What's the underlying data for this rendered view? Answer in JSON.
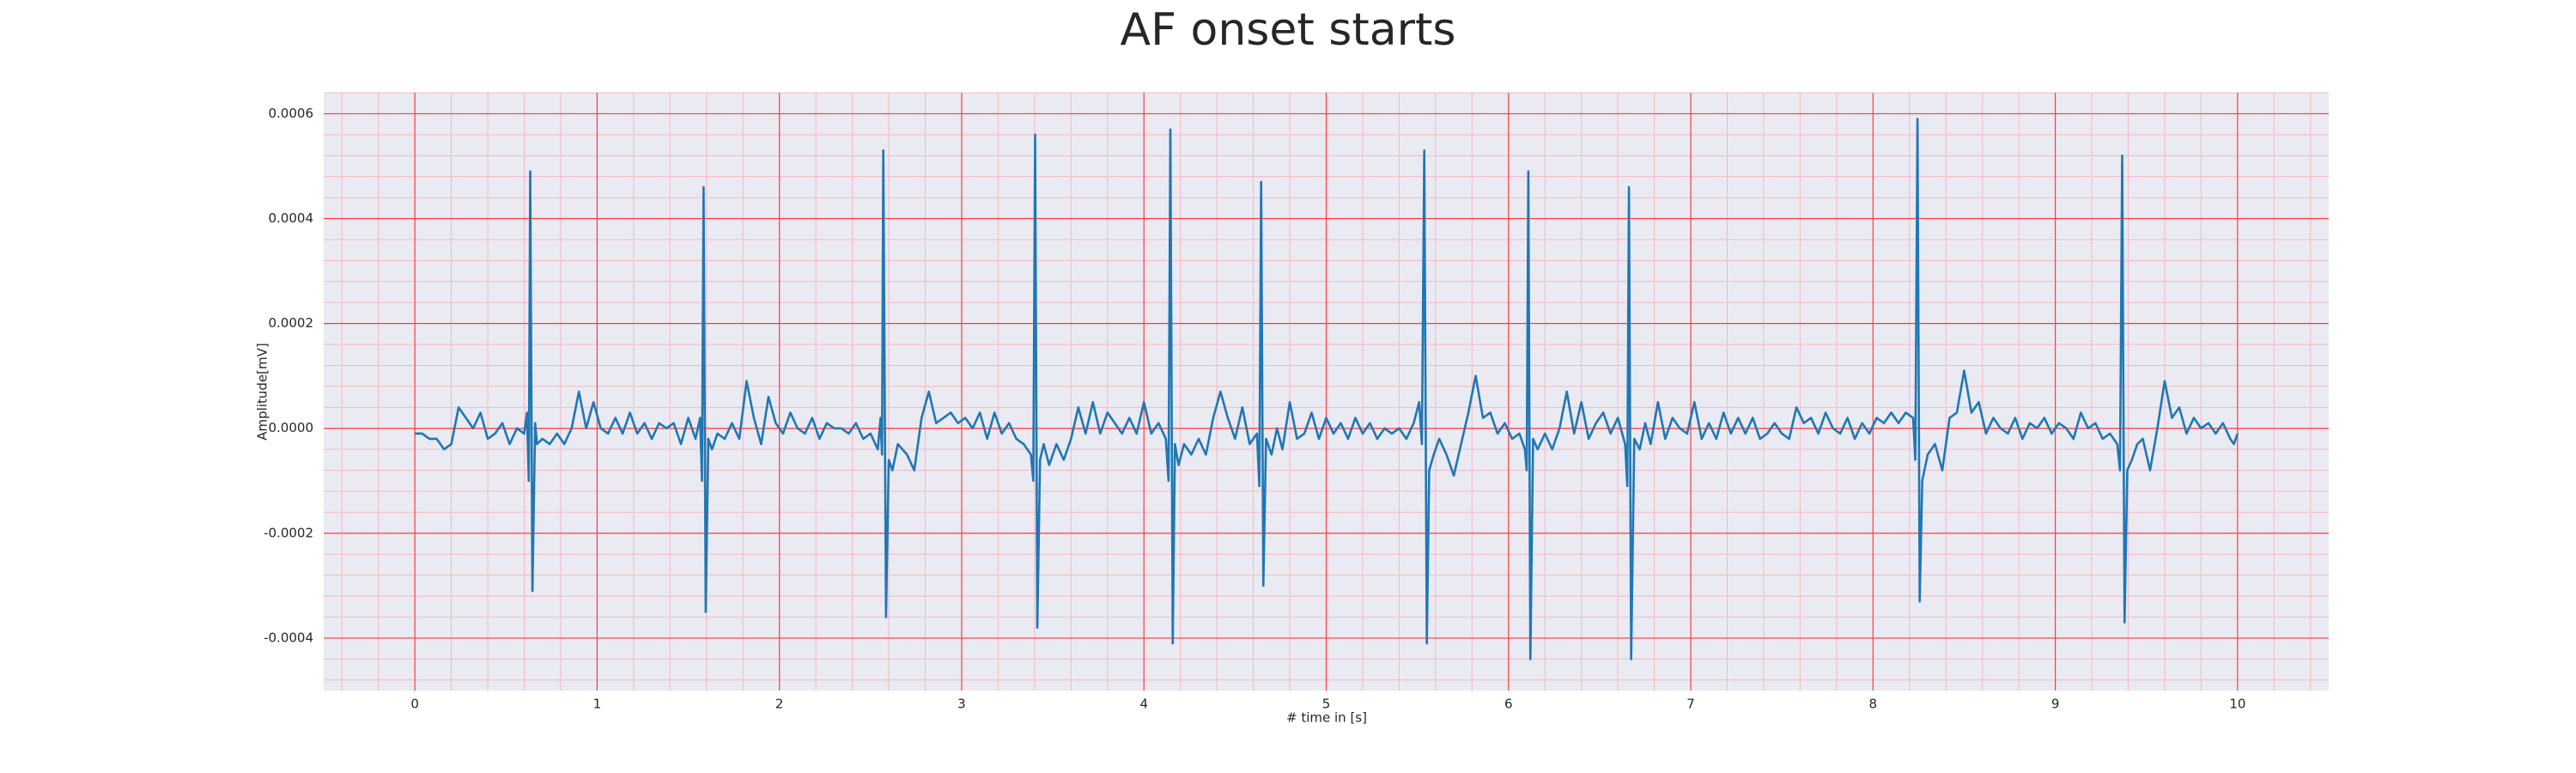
{
  "chart_data": {
    "type": "line",
    "title": "AF onset starts",
    "xlabel": "# time in [s]",
    "ylabel": "Amplitude[mV]",
    "color": "#1f77b4",
    "background": "#eaeaf2",
    "grid": true,
    "grid_color": "#ff3b3b",
    "minor_grid_color": "#f7b8c4",
    "xlim": [
      -0.5,
      10.5
    ],
    "ylim": [
      -0.0005,
      0.00064
    ],
    "xticks": [
      0,
      1,
      2,
      3,
      4,
      5,
      6,
      7,
      8,
      9,
      10
    ],
    "yticks": [
      -0.0004,
      -0.0002,
      {
        "value": 0,
        "label": "0.0000"
      },
      0.0002,
      0.0004,
      0.0006
    ],
    "xminorticks": [
      -0.4,
      -0.2,
      0.2,
      0.4,
      0.6,
      0.8,
      1.2,
      1.4,
      1.6,
      1.8,
      2.2,
      2.4,
      2.6,
      2.8,
      3.2,
      3.4,
      3.6,
      3.8,
      4.2,
      4.4,
      4.6,
      4.8,
      5.2,
      5.4,
      5.6,
      5.8,
      6.2,
      6.4,
      6.6,
      6.8,
      7.2,
      7.4,
      7.6,
      7.8,
      8.2,
      8.4,
      8.6,
      8.8,
      9.2,
      9.4,
      9.6,
      9.8,
      10.2,
      10.4
    ],
    "yminorticks": [
      -0.00048,
      -0.00044,
      -0.00036,
      -0.00032,
      -0.00028,
      -0.00024,
      -0.00016,
      -0.00012,
      -8e-05,
      -4e-05,
      4e-05,
      8e-05,
      0.00012,
      0.00016,
      0.00024,
      0.00028,
      0.00032,
      0.00036,
      0.00044,
      0.00048,
      0.00052,
      0.00056,
      0.00064
    ],
    "x": [
      0,
      0.04,
      0.08,
      0.12,
      0.16,
      0.2,
      0.24,
      0.28,
      0.32,
      0.36,
      0.4,
      0.44,
      0.48,
      0.52,
      0.56,
      0.6,
      0.615,
      0.625,
      0.633,
      0.645,
      0.66,
      0.67,
      0.7,
      0.74,
      0.78,
      0.82,
      0.86,
      0.9,
      0.94,
      0.98,
      1.02,
      1.06,
      1.1,
      1.14,
      1.18,
      1.22,
      1.26,
      1.3,
      1.34,
      1.38,
      1.42,
      1.46,
      1.5,
      1.54,
      1.565,
      1.575,
      1.584,
      1.596,
      1.61,
      1.63,
      1.66,
      1.7,
      1.74,
      1.78,
      1.82,
      1.86,
      1.9,
      1.94,
      1.98,
      2.02,
      2.06,
      2.1,
      2.14,
      2.18,
      2.22,
      2.26,
      2.3,
      2.34,
      2.38,
      2.42,
      2.46,
      2.5,
      2.54,
      2.555,
      2.563,
      2.57,
      2.585,
      2.6,
      2.62,
      2.65,
      2.7,
      2.74,
      2.78,
      2.82,
      2.86,
      2.9,
      2.94,
      2.98,
      3.02,
      3.06,
      3.1,
      3.14,
      3.18,
      3.22,
      3.26,
      3.3,
      3.34,
      3.38,
      3.393,
      3.403,
      3.415,
      3.43,
      3.45,
      3.48,
      3.52,
      3.56,
      3.6,
      3.64,
      3.68,
      3.72,
      3.76,
      3.8,
      3.84,
      3.88,
      3.92,
      3.96,
      4.0,
      4.04,
      4.08,
      4.12,
      4.135,
      4.145,
      4.158,
      4.17,
      4.19,
      4.22,
      4.26,
      4.3,
      4.34,
      4.38,
      4.42,
      4.46,
      4.5,
      4.54,
      4.58,
      4.62,
      4.633,
      4.643,
      4.655,
      4.67,
      4.7,
      4.73,
      4.76,
      4.8,
      4.84,
      4.88,
      4.92,
      4.96,
      5.0,
      5.04,
      5.08,
      5.12,
      5.16,
      5.2,
      5.24,
      5.28,
      5.32,
      5.36,
      5.4,
      5.44,
      5.48,
      5.51,
      5.525,
      5.538,
      5.552,
      5.565,
      5.59,
      5.62,
      5.66,
      5.7,
      5.74,
      5.78,
      5.82,
      5.86,
      5.9,
      5.94,
      5.98,
      6.02,
      6.06,
      6.09,
      6.1,
      6.109,
      6.12,
      6.135,
      6.16,
      6.2,
      6.24,
      6.28,
      6.32,
      6.36,
      6.4,
      6.44,
      6.48,
      6.52,
      6.56,
      6.6,
      6.64,
      6.652,
      6.661,
      6.673,
      6.69,
      6.72,
      6.75,
      6.78,
      6.82,
      6.86,
      6.9,
      6.94,
      6.98,
      7.02,
      7.06,
      7.1,
      7.14,
      7.18,
      7.22,
      7.26,
      7.3,
      7.34,
      7.38,
      7.42,
      7.46,
      7.5,
      7.54,
      7.58,
      7.62,
      7.66,
      7.7,
      7.74,
      7.78,
      7.82,
      7.86,
      7.9,
      7.94,
      7.98,
      8.02,
      8.06,
      8.1,
      8.14,
      8.18,
      8.22,
      8.232,
      8.244,
      8.256,
      8.27,
      8.3,
      8.34,
      8.38,
      8.42,
      8.46,
      8.5,
      8.54,
      8.58,
      8.62,
      8.66,
      8.7,
      8.74,
      8.78,
      8.82,
      8.86,
      8.9,
      8.94,
      8.98,
      9.02,
      9.06,
      9.1,
      9.14,
      9.18,
      9.22,
      9.26,
      9.3,
      9.34,
      9.355,
      9.367,
      9.38,
      9.395,
      9.42,
      9.45,
      9.48,
      9.52,
      9.56,
      9.6,
      9.64,
      9.68,
      9.72,
      9.76,
      9.8,
      9.84,
      9.88,
      9.92,
      9.96,
      9.98,
      10.0
    ],
    "values": [
      -1e-05,
      -1e-05,
      -2e-05,
      -2e-05,
      -4e-05,
      -3e-05,
      4e-05,
      2e-05,
      0,
      3e-05,
      -2e-05,
      -1e-05,
      1e-05,
      -3e-05,
      0,
      -1e-05,
      3e-05,
      -0.0001,
      0.00049,
      -0.00031,
      1e-05,
      -3e-05,
      -2e-05,
      -3e-05,
      -1e-05,
      -3e-05,
      0,
      7e-05,
      0,
      5e-05,
      0,
      -1e-05,
      2e-05,
      -1e-05,
      3e-05,
      -1e-05,
      1e-05,
      -2e-05,
      1e-05,
      0,
      1e-05,
      -3e-05,
      2e-05,
      -2e-05,
      2e-05,
      -0.0001,
      0.00046,
      -0.00035,
      -2e-05,
      -4e-05,
      -1e-05,
      -2e-05,
      1e-05,
      -2e-05,
      9e-05,
      2e-05,
      -3e-05,
      6e-05,
      1e-05,
      -1e-05,
      3e-05,
      0,
      -1e-05,
      2e-05,
      -2e-05,
      1e-05,
      0,
      0,
      -1e-05,
      1e-05,
      -2e-05,
      -1e-05,
      -4e-05,
      2e-05,
      -5e-05,
      0.00053,
      -0.00036,
      -6e-05,
      -8e-05,
      -3e-05,
      -5e-05,
      -8e-05,
      2e-05,
      7e-05,
      1e-05,
      2e-05,
      3e-05,
      1e-05,
      2e-05,
      0,
      3e-05,
      -2e-05,
      3e-05,
      -1e-05,
      1e-05,
      -2e-05,
      -3e-05,
      -5e-05,
      -0.0001,
      0.00056,
      -0.00038,
      -6e-05,
      -3e-05,
      -7e-05,
      -3e-05,
      -6e-05,
      -2e-05,
      4e-05,
      -1e-05,
      5e-05,
      -1e-05,
      3e-05,
      1e-05,
      -1e-05,
      2e-05,
      -1e-05,
      5e-05,
      -1e-05,
      1e-05,
      -2e-05,
      -0.0001,
      0.00057,
      -0.00041,
      -3e-05,
      -7e-05,
      -3e-05,
      -5e-05,
      -2e-05,
      -5e-05,
      2e-05,
      7e-05,
      2e-05,
      -2e-05,
      4e-05,
      -3e-05,
      -1e-05,
      -0.00011,
      0.00047,
      -0.0003,
      -2e-05,
      -5e-05,
      0,
      -4e-05,
      5e-05,
      -2e-05,
      -1e-05,
      3e-05,
      -2e-05,
      2e-05,
      -1e-05,
      1e-05,
      -2e-05,
      2e-05,
      -1e-05,
      1e-05,
      -2e-05,
      0,
      -1e-05,
      0,
      -2e-05,
      1e-05,
      5e-05,
      -3e-05,
      0.00053,
      -0.00041,
      -8e-05,
      -5e-05,
      -2e-05,
      -5e-05,
      -9e-05,
      -3e-05,
      3e-05,
      0.0001,
      2e-05,
      3e-05,
      -1e-05,
      1e-05,
      -2e-05,
      -1e-05,
      -4e-05,
      -8e-05,
      0.00049,
      -0.00044,
      -2e-05,
      -4e-05,
      -1e-05,
      -4e-05,
      0,
      7e-05,
      -1e-05,
      5e-05,
      -2e-05,
      1e-05,
      3e-05,
      -1e-05,
      2e-05,
      -3e-05,
      -0.00011,
      0.00046,
      -0.00044,
      -2e-05,
      -4e-05,
      1e-05,
      -3e-05,
      5e-05,
      -2e-05,
      2e-05,
      0,
      -1e-05,
      5e-05,
      -2e-05,
      1e-05,
      -2e-05,
      3e-05,
      -1e-05,
      2e-05,
      -1e-05,
      2e-05,
      -2e-05,
      -1e-05,
      1e-05,
      -1e-05,
      -2e-05,
      4e-05,
      1e-05,
      2e-05,
      -1e-05,
      3e-05,
      0,
      -1e-05,
      2e-05,
      -2e-05,
      1e-05,
      -1e-05,
      2e-05,
      1e-05,
      3e-05,
      1e-05,
      3e-05,
      2e-05,
      -6e-05,
      0.00059,
      -0.00033,
      -0.0001,
      -5e-05,
      -3e-05,
      -8e-05,
      2e-05,
      3e-05,
      0.00011,
      3e-05,
      5e-05,
      -1e-05,
      2e-05,
      0,
      -1e-05,
      2e-05,
      -2e-05,
      1e-05,
      0,
      2e-05,
      -1e-05,
      1e-05,
      0,
      -2e-05,
      3e-05,
      0,
      1e-05,
      -2e-05,
      -1e-05,
      -3e-05,
      -8e-05,
      0.00052,
      -0.00037,
      -8e-05,
      -6e-05,
      -3e-05,
      -2e-05,
      -8e-05,
      0,
      9e-05,
      2e-05,
      4e-05,
      -1e-05,
      2e-05,
      0,
      1e-05,
      -1e-05,
      1e-05,
      -2e-05,
      -3e-05,
      -1e-05
    ]
  }
}
